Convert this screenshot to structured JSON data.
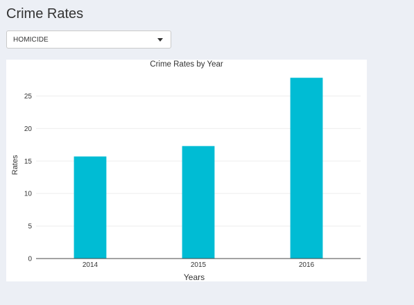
{
  "page": {
    "title": "Crime Rates"
  },
  "filter": {
    "selected": "HOMICIDE",
    "caret_icon": "caret-down-icon"
  },
  "chart_data": {
    "type": "bar",
    "title": "Crime Rates by Year",
    "xlabel": "Years",
    "ylabel": "Rates",
    "categories": [
      "2014",
      "2015",
      "2016"
    ],
    "values": [
      15.7,
      17.3,
      27.8
    ],
    "ylim": [
      0,
      29.1
    ],
    "yticks": [
      0,
      5,
      10,
      15,
      20,
      25
    ],
    "grid": true,
    "bar_color": "#00bcd4"
  }
}
